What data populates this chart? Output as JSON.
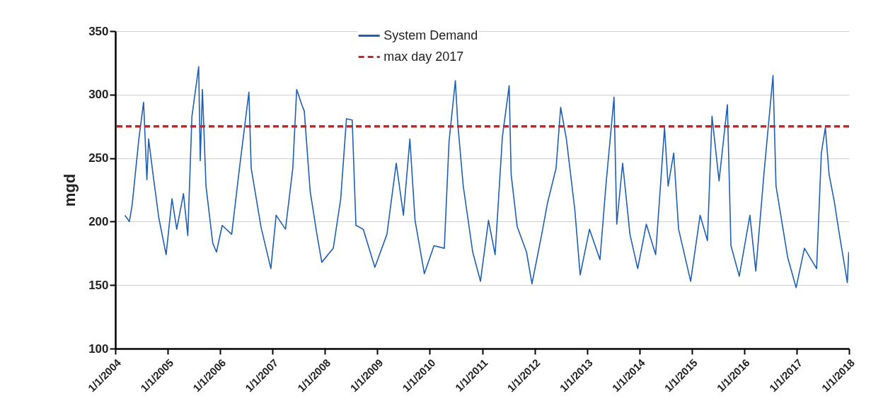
{
  "chart_data": {
    "type": "line",
    "ylabel": "mgd",
    "x": [
      "2004-03-08",
      "2004-04-08",
      "2004-04-27",
      "2004-06-13",
      "2004-07-16",
      "2004-08-08",
      "2004-08-20",
      "2004-09-20",
      "2004-10-30",
      "2004-12-20",
      "2005-01-30",
      "2005-03-04",
      "2005-04-20",
      "2005-05-20",
      "2005-06-18",
      "2005-08-04",
      "2005-08-15",
      "2005-08-30",
      "2005-09-24",
      "2005-11-10",
      "2005-12-06",
      "2006-01-15",
      "2006-03-22",
      "2006-05-12",
      "2006-07-20",
      "2006-08-05",
      "2006-10-12",
      "2006-12-20",
      "2007-01-26",
      "2007-04-01",
      "2007-05-22",
      "2007-06-18",
      "2007-07-24",
      "2007-08-10",
      "2007-09-20",
      "2007-11-06",
      "2007-12-10",
      "2008-02-28",
      "2008-04-20",
      "2008-05-30",
      "2008-07-09",
      "2008-08-04",
      "2008-09-24",
      "2008-12-14",
      "2009-03-08",
      "2009-05-12",
      "2009-07-01",
      "2009-08-15",
      "2009-09-20",
      "2009-11-24",
      "2010-01-30",
      "2010-04-12",
      "2010-05-15",
      "2010-06-28",
      "2010-07-15",
      "2010-08-22",
      "2010-10-27",
      "2010-12-20",
      "2011-02-14",
      "2011-04-01",
      "2011-05-22",
      "2011-07-08",
      "2011-07-22",
      "2011-09-02",
      "2011-11-06",
      "2011-12-14",
      "2012-02-20",
      "2012-04-01",
      "2012-05-30",
      "2012-07-01",
      "2012-08-10",
      "2012-10-08",
      "2012-11-14",
      "2013-01-18",
      "2013-04-01",
      "2013-05-12",
      "2013-07-08",
      "2013-07-27",
      "2013-09-06",
      "2013-10-27",
      "2013-12-20",
      "2014-02-18",
      "2014-04-24",
      "2014-06-25",
      "2014-07-20",
      "2014-08-28",
      "2014-10-01",
      "2014-12-24",
      "2015-02-28",
      "2015-04-20",
      "2015-05-22",
      "2015-07-10",
      "2015-09-06",
      "2015-10-01",
      "2015-11-28",
      "2016-02-10",
      "2016-03-22",
      "2016-05-19",
      "2016-07-20",
      "2016-08-10",
      "2016-10-30",
      "2016-12-28",
      "2017-02-24",
      "2017-05-20",
      "2017-06-22",
      "2017-07-20",
      "2017-08-15",
      "2017-09-20",
      "2017-10-20",
      "2017-12-20",
      "2017-12-30"
    ],
    "series": [
      {
        "name": "System Demand",
        "color": "#1f5fb4",
        "values": [
          205,
          200,
          213,
          265,
          294,
          233,
          265,
          237,
          203,
          174,
          218,
          194,
          222,
          189,
          283,
          322,
          248,
          304,
          228,
          183,
          176,
          197,
          190,
          239,
          302,
          242,
          196,
          163,
          205,
          194,
          242,
          304,
          292,
          287,
          224,
          190,
          168,
          179,
          218,
          281,
          280,
          197,
          194,
          164,
          190,
          246,
          205,
          265,
          201,
          159,
          181,
          179,
          263,
          311,
          277,
          228,
          176,
          153,
          201,
          174,
          267,
          307,
          237,
          196,
          176,
          151,
          190,
          215,
          242,
          290,
          265,
          209,
          158,
          194,
          170,
          228,
          298,
          198,
          246,
          190,
          163,
          198,
          174,
          274,
          228,
          254,
          194,
          153,
          205,
          185,
          283,
          232,
          292,
          181,
          157,
          205,
          161,
          239,
          315,
          228,
          172,
          148,
          179,
          163,
          254,
          274,
          237,
          216,
          194,
          152,
          176
        ]
      }
    ],
    "ref_lines": [
      {
        "axis": "y",
        "value": 275,
        "label": "max day 2017",
        "color": "#c0282d",
        "line_style": "dashed"
      }
    ],
    "xlim": [
      "2004-01-01",
      "2018-01-01"
    ],
    "xticks": [
      {
        "value": "2004-01-01",
        "label": "1/1/2004"
      },
      {
        "value": "2005-01-01",
        "label": "1/1/2005"
      },
      {
        "value": "2006-01-01",
        "label": "1/1/2006"
      },
      {
        "value": "2007-01-01",
        "label": "1/1/2007"
      },
      {
        "value": "2008-01-01",
        "label": "1/1/2008"
      },
      {
        "value": "2009-01-01",
        "label": "1/1/2009"
      },
      {
        "value": "2010-01-01",
        "label": "1/1/2010"
      },
      {
        "value": "2011-01-01",
        "label": "1/1/2011"
      },
      {
        "value": "2012-01-01",
        "label": "1/1/2012"
      },
      {
        "value": "2013-01-01",
        "label": "1/1/2013"
      },
      {
        "value": "2014-01-01",
        "label": "1/1/2014"
      },
      {
        "value": "2015-01-01",
        "label": "1/1/2015"
      },
      {
        "value": "2016-01-01",
        "label": "1/1/2016"
      },
      {
        "value": "2017-01-01",
        "label": "1/1/2017"
      },
      {
        "value": "2018-01-01",
        "label": "1/1/2018"
      }
    ],
    "ylim": [
      100,
      350
    ],
    "yticks": [
      100,
      150,
      200,
      250,
      300,
      350
    ],
    "grid": "y",
    "legend": "top",
    "line_style": "solid",
    "marker": "none"
  }
}
